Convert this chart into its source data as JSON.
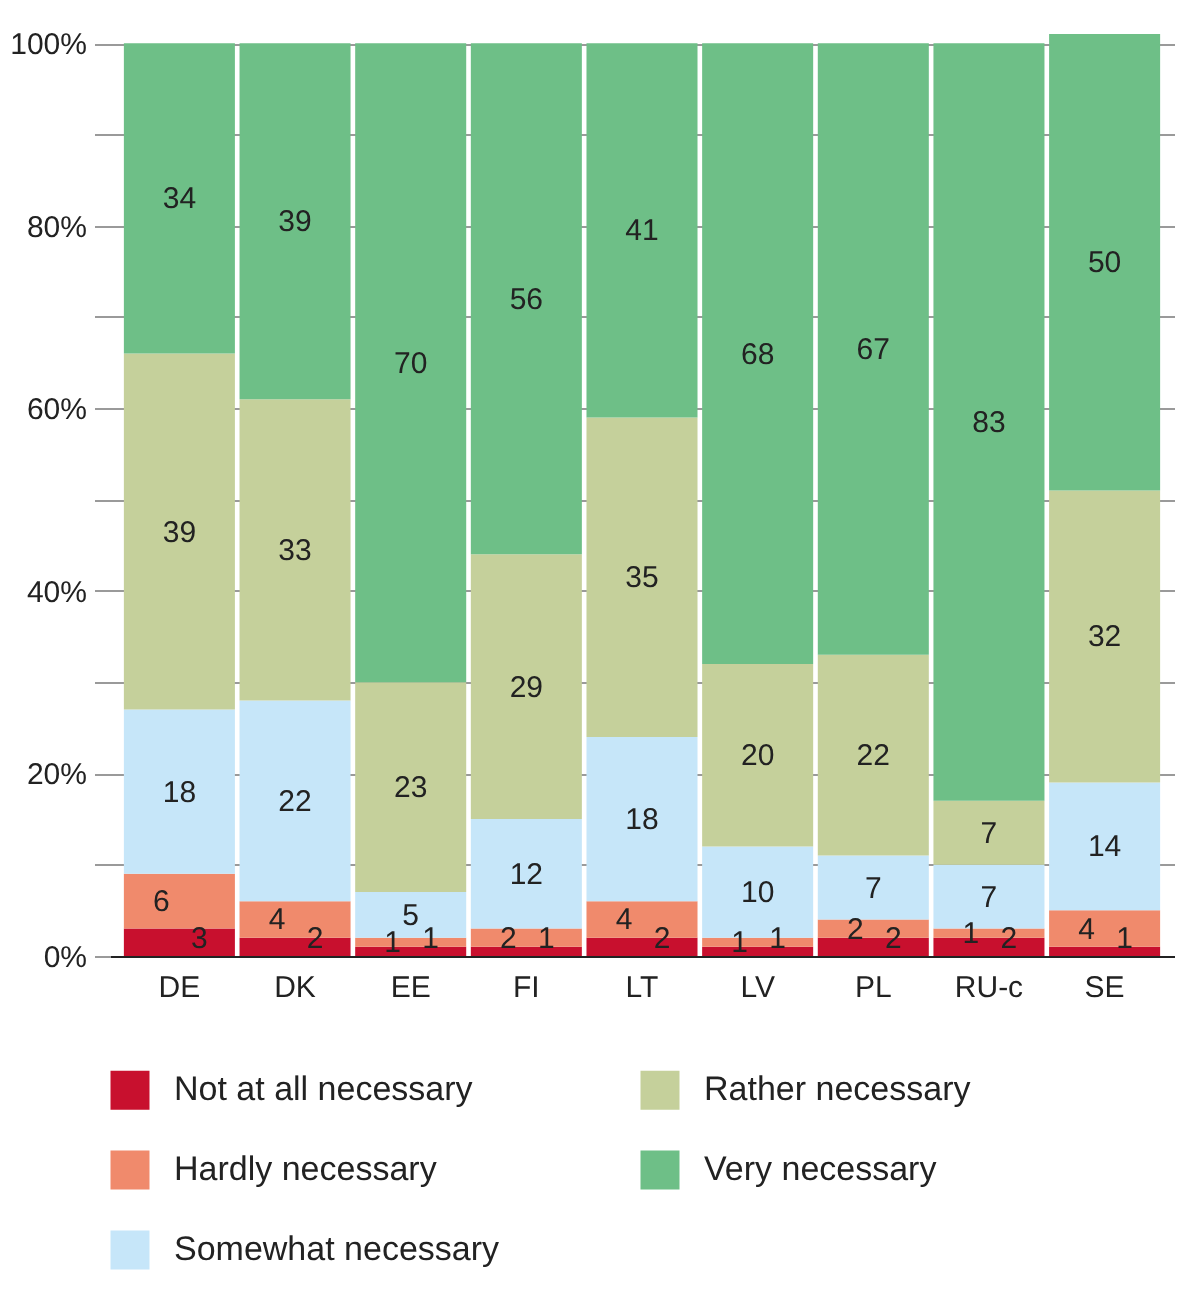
{
  "chart_data": {
    "type": "bar",
    "stacked": true,
    "data_labels": true,
    "grid": "y",
    "legend": "bottom",
    "categories": [
      "DE",
      "DK",
      "EE",
      "FI",
      "LT",
      "LV",
      "PL",
      "RU-c",
      "SE"
    ],
    "ylim": [
      0,
      101
    ],
    "yticks": [
      {
        "value": 0,
        "label": "0%"
      },
      {
        "value": 10,
        "label": null
      },
      {
        "value": 20,
        "label": "20%"
      },
      {
        "value": 30,
        "label": null
      },
      {
        "value": 40,
        "label": "40%"
      },
      {
        "value": 50,
        "label": null
      },
      {
        "value": 60,
        "label": "60%"
      },
      {
        "value": 70,
        "label": null
      },
      {
        "value": 80,
        "label": "80%"
      },
      {
        "value": 90,
        "label": null
      },
      {
        "value": 100,
        "label": "100%"
      }
    ],
    "series": [
      {
        "name": "Not at all necessary",
        "color": "#c8102e",
        "values": [
          3,
          2,
          1,
          1,
          2,
          1,
          2,
          2,
          1
        ]
      },
      {
        "name": "Hardly necessary",
        "color": "#f08a6c",
        "values": [
          6,
          4,
          1,
          2,
          4,
          1,
          2,
          1,
          4
        ]
      },
      {
        "name": "Somewhat necessary",
        "color": "#c6e6f9",
        "values": [
          18,
          22,
          5,
          12,
          18,
          10,
          7,
          7,
          14
        ]
      },
      {
        "name": "Rather necessary",
        "color": "#c5d09b",
        "values": [
          39,
          33,
          23,
          29,
          35,
          20,
          22,
          7,
          32
        ]
      },
      {
        "name": "Very necessary",
        "color": "#6ebf87",
        "values": [
          34,
          39,
          70,
          56,
          41,
          68,
          67,
          83,
          50
        ]
      }
    ]
  }
}
